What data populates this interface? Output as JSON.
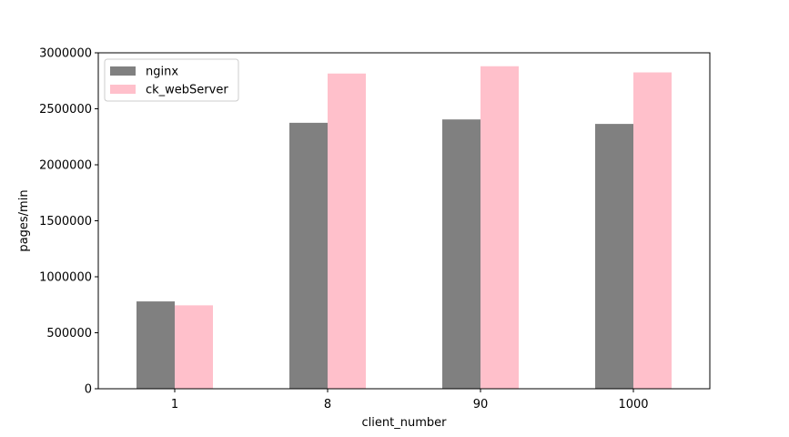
{
  "chart_data": {
    "type": "bar",
    "categories": [
      "1",
      "8",
      "90",
      "1000"
    ],
    "series": [
      {
        "name": "nginx",
        "values": [
          780000,
          2375000,
          2405000,
          2365000
        ],
        "color": "#808080"
      },
      {
        "name": "ck_webServer",
        "values": [
          745000,
          2815000,
          2880000,
          2825000
        ],
        "color": "#ffc0cb"
      }
    ],
    "xlabel": "client_number",
    "ylabel": "pages/min",
    "ylim": [
      0,
      3000000
    ],
    "yticks": [
      0,
      500000,
      1000000,
      1500000,
      2000000,
      2500000,
      3000000
    ],
    "ytick_labels": [
      "0",
      "500000",
      "1000000",
      "1500000",
      "2000000",
      "2500000",
      "3000000"
    ],
    "grid": false,
    "legend_position": "top-left"
  }
}
